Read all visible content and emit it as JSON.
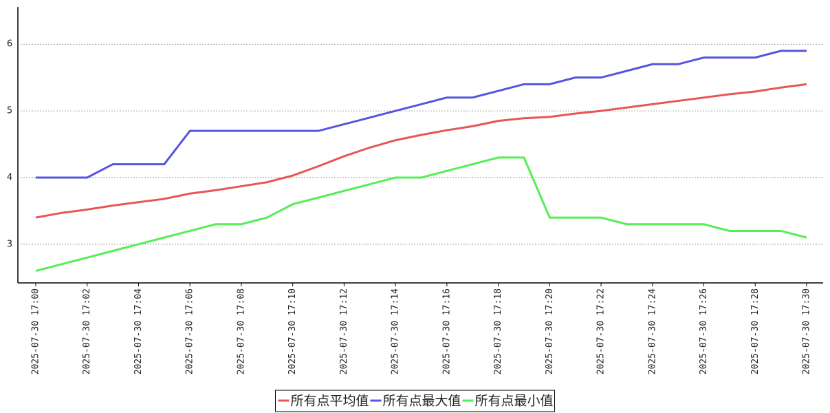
{
  "chart_data": {
    "type": "line",
    "categories": [
      "2025-07-30 17:00",
      null,
      "2025-07-30 17:02",
      null,
      "2025-07-30 17:04",
      null,
      "2025-07-30 17:06",
      null,
      "2025-07-30 17:08",
      null,
      "2025-07-30 17:10",
      null,
      "2025-07-30 17:12",
      null,
      "2025-07-30 17:14",
      null,
      "2025-07-30 17:16",
      null,
      "2025-07-30 17:18",
      null,
      "2025-07-30 17:20",
      null,
      "2025-07-30 17:22",
      null,
      "2025-07-30 17:24",
      null,
      "2025-07-30 17:26",
      null,
      "2025-07-30 17:28",
      null,
      "2025-07-30 17:30"
    ],
    "series": [
      {
        "name": "所有点平均值",
        "color": "#e85555",
        "values": [
          3.4,
          3.47,
          3.52,
          3.58,
          3.63,
          3.68,
          3.76,
          3.81,
          3.87,
          3.93,
          4.03,
          4.17,
          4.32,
          4.45,
          4.56,
          4.64,
          4.71,
          4.77,
          4.85,
          4.89,
          4.91,
          4.96,
          5.0,
          5.05,
          5.1,
          5.15,
          5.2,
          5.25,
          5.29,
          5.35,
          5.4
        ]
      },
      {
        "name": "所有点最大值",
        "color": "#5555e0",
        "values": [
          4.0,
          4.0,
          4.0,
          4.2,
          4.2,
          4.2,
          4.7,
          4.7,
          4.7,
          4.7,
          4.7,
          4.7,
          4.8,
          4.9,
          5.0,
          5.1,
          5.2,
          5.2,
          5.3,
          5.4,
          5.4,
          5.5,
          5.5,
          5.6,
          5.7,
          5.7,
          5.8,
          5.8,
          5.8,
          5.9,
          5.9
        ]
      },
      {
        "name": "所有点最小值",
        "color": "#55ee55",
        "values": [
          2.6,
          2.7,
          2.8,
          2.9,
          3.0,
          3.1,
          3.2,
          3.3,
          3.3,
          3.4,
          3.6,
          3.7,
          3.8,
          3.9,
          4.0,
          4.0,
          4.1,
          4.2,
          4.3,
          4.3,
          3.4,
          3.4,
          3.4,
          3.3,
          3.3,
          3.3,
          3.3,
          3.2,
          3.2,
          3.2,
          3.1
        ]
      }
    ],
    "ylim": [
      2.42,
      6.56
    ],
    "yticks": [
      3,
      4,
      5,
      6
    ],
    "grid": true,
    "legend": "bottom"
  }
}
